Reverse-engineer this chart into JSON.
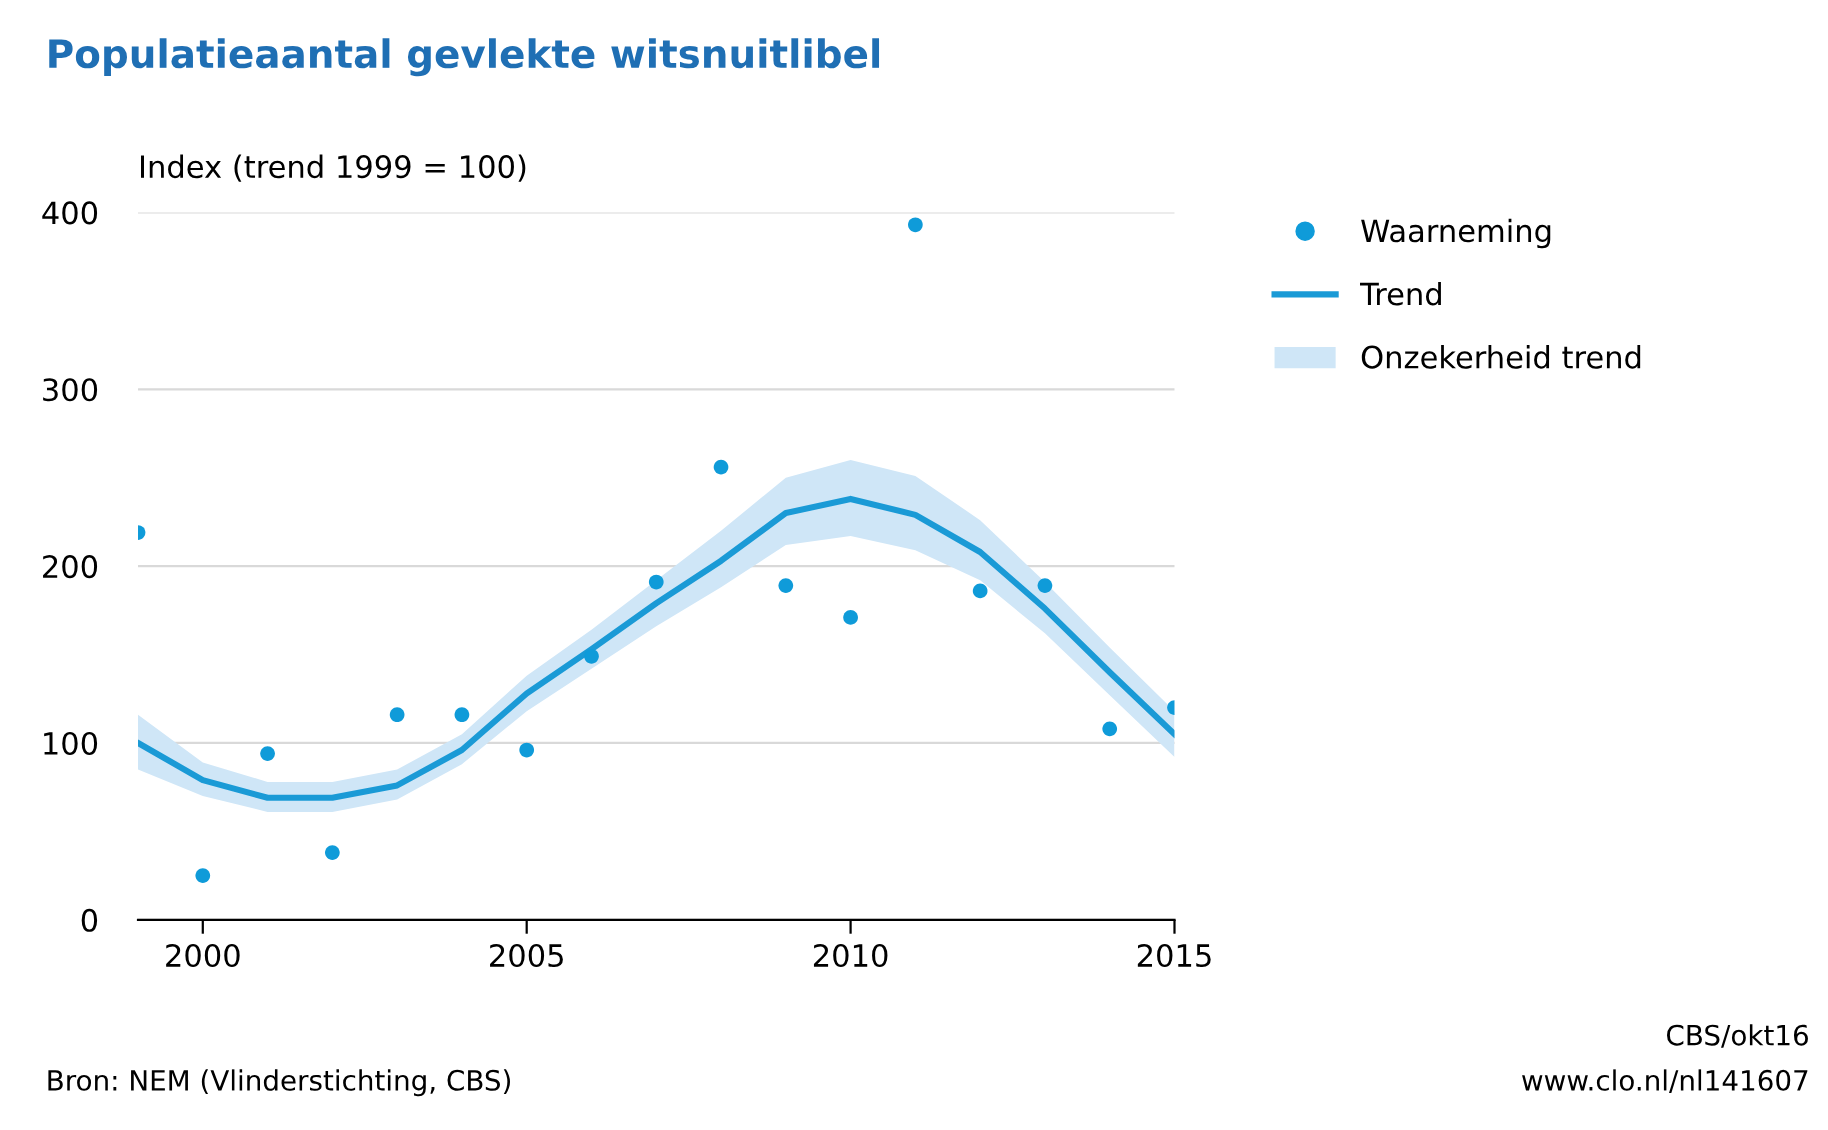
{
  "chart_data": {
    "type": "scatter",
    "title": "Populatieaantal gevlekte witsnuitlibel",
    "ylabel": "Index (trend 1999 = 100)",
    "x": [
      1999,
      2000,
      2001,
      2002,
      2003,
      2004,
      2005,
      2006,
      2007,
      2008,
      2009,
      2010,
      2011,
      2012,
      2013,
      2014,
      2015
    ],
    "series": [
      {
        "type": "area",
        "name": "Onzekerheid trend",
        "color": "#cfe6f7",
        "values": [
          null,
          null,
          null,
          null,
          null,
          null,
          null,
          null,
          null,
          null,
          null,
          null,
          null,
          null,
          null,
          null,
          null
        ]
      },
      {
        "type": "line",
        "name": "Trend",
        "color": "#1a9ad6",
        "values": [
          100,
          79,
          69,
          69,
          76,
          96,
          128,
          153,
          179,
          203,
          230,
          238,
          229,
          208,
          176,
          140,
          105
        ],
        "lower": [
          85,
          70,
          61,
          61,
          68,
          88,
          118,
          142,
          166,
          188,
          212,
          217,
          209,
          192,
          162,
          127,
          92
        ],
        "upper": [
          116,
          89,
          78,
          78,
          85,
          105,
          138,
          164,
          192,
          220,
          250,
          260,
          251,
          226,
          191,
          154,
          118
        ]
      },
      {
        "marker": "circle",
        "name": "Waarneming",
        "color": "#0f9bd9",
        "values": [
          219,
          25,
          94,
          38,
          116,
          116,
          96,
          149,
          191,
          256,
          189,
          171,
          393,
          186,
          189,
          108,
          120
        ]
      }
    ],
    "xlim": [
      1999,
      2015
    ],
    "xticks": [
      2000,
      2005,
      2010,
      2015
    ],
    "ylim": [
      0,
      400
    ],
    "yticks": [
      0,
      100,
      200,
      300,
      400
    ],
    "grid": "y",
    "legend": "top right",
    "annotations": [
      "Bron: NEM (Vlinderstichting, CBS)",
      "CBS/okt16",
      "www.clo.nl/nl141607"
    ]
  }
}
